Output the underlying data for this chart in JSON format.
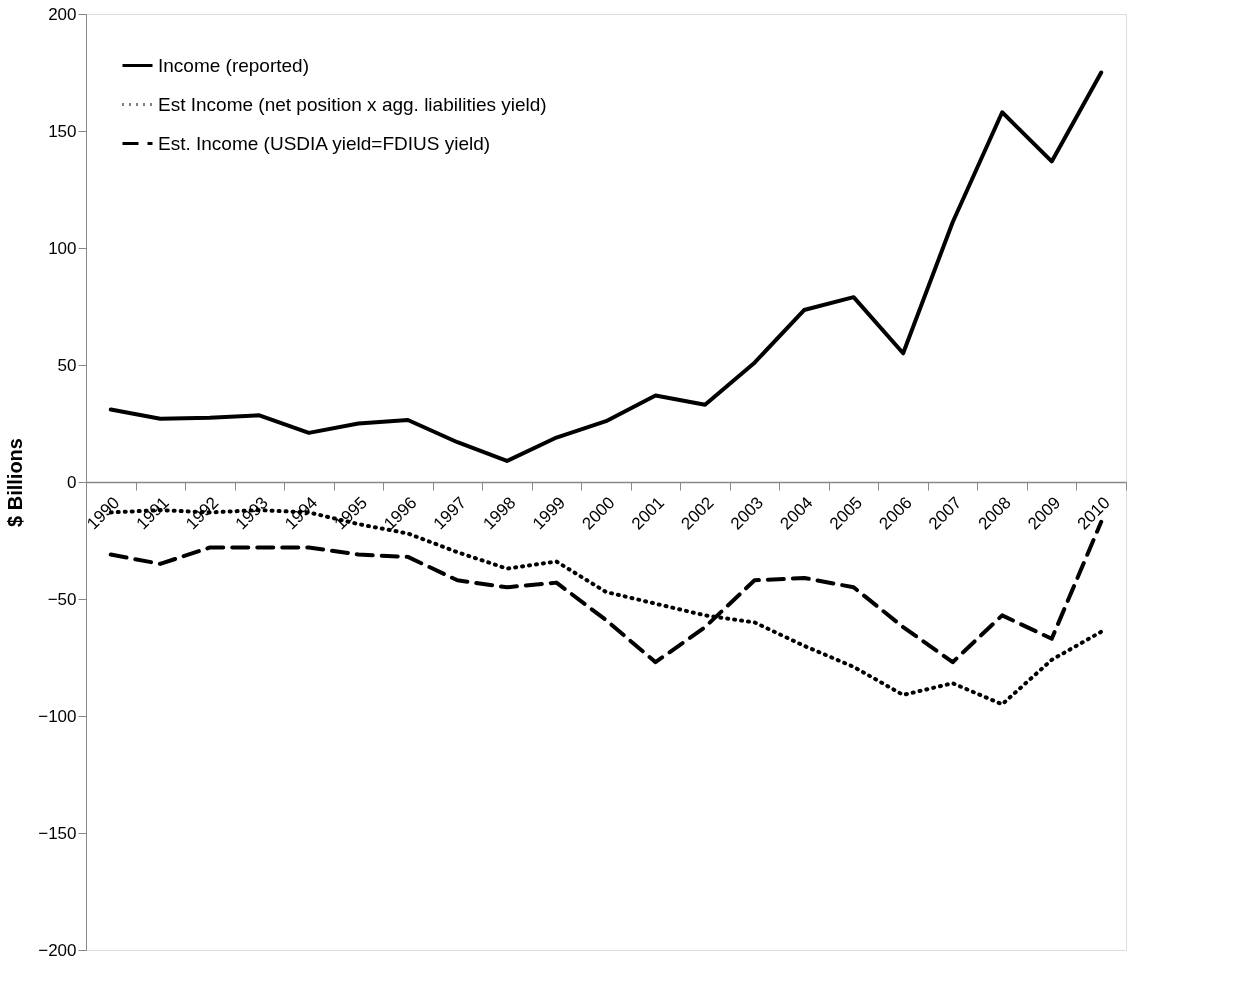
{
  "chart_data": {
    "type": "line",
    "ylabel": "$ Billions",
    "categories": [
      "1990",
      "1991",
      "1992",
      "1993",
      "1994",
      "1995",
      "1996",
      "1997",
      "1998",
      "1999",
      "2000",
      "2001",
      "2002",
      "2003",
      "2004",
      "2005",
      "2006",
      "2007",
      "2008",
      "2009",
      "2010"
    ],
    "series": [
      {
        "name": "Income (reported)",
        "color": "#000000",
        "line_style": "solid",
        "values": [
          31,
          27,
          27.5,
          28.5,
          21,
          25,
          26.5,
          17,
          9,
          19,
          26,
          37,
          33,
          51,
          73.5,
          79,
          55,
          111,
          158,
          137,
          175
        ]
      },
      {
        "name": "Est Income (net position x agg. liabilities yield)",
        "color": "#000000",
        "line_style": "dotted",
        "values": [
          -13,
          -12,
          -13,
          -12,
          -13,
          -18,
          -22,
          -30,
          -37,
          -34,
          -47,
          -52,
          -57,
          -60,
          -70,
          -79,
          -91,
          -86,
          -95,
          -76,
          -64
        ]
      },
      {
        "name": "Est. Income (USDIA yield=FDIUS yield)",
        "color": "#000000",
        "line_style": "dashed",
        "values": [
          -31,
          -35,
          -28,
          -28,
          -28,
          -31,
          -32,
          -42,
          -45,
          -43,
          -59,
          -77,
          -62,
          -42,
          -41,
          -45,
          -62,
          -77,
          -57,
          -67,
          -17
        ]
      }
    ],
    "ylim": [
      -200,
      200
    ],
    "yticks": [
      -200,
      -150,
      -100,
      -50,
      0,
      50,
      100,
      150,
      200
    ],
    "grid": false,
    "legend": "top left"
  }
}
